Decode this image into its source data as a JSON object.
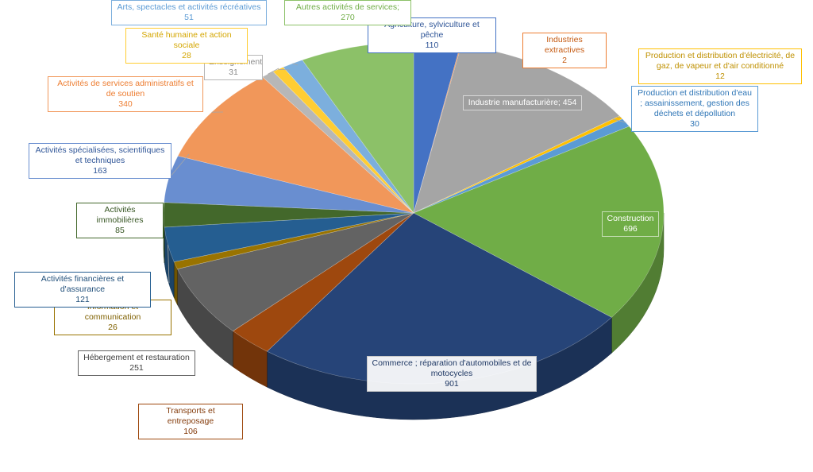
{
  "chart_data": {
    "type": "pie",
    "title": "",
    "slices": [
      {
        "name": "Agriculture, sylviculture et pêche",
        "value": "110",
        "color": "#4472C4",
        "textColor": "#2F5597"
      },
      {
        "name": "Industries extractives",
        "value": "2",
        "color": "#ED7D31",
        "textColor": "#C55A11"
      },
      {
        "name": "Industrie manufacturière; 454",
        "value": "",
        "color": "#A5A5A5",
        "textColor": "#ffffff"
      },
      {
        "name": "Production et distribution d'électricité, de gaz, de vapeur et d'air conditionné",
        "value": "12",
        "color": "#FFC000",
        "textColor": "#BF9000"
      },
      {
        "name": "Production et distribution d'eau ; assainissement, gestion des déchets et dépollution",
        "value": "30",
        "color": "#5B9BD5",
        "textColor": "#2E75B6"
      },
      {
        "name": "Construction",
        "value": "696",
        "color": "#70AD47",
        "textColor": "#ffffff"
      },
      {
        "name": "Commerce ; réparation d'automobiles et de motocycles",
        "value": "901",
        "color": "#264478",
        "textColor": "#1F3864"
      },
      {
        "name": "Transports et entreposage",
        "value": "106",
        "color": "#9E480E",
        "textColor": "#843C0C"
      },
      {
        "name": "Hébergement et restauration",
        "value": "251",
        "color": "#636363",
        "textColor": "#404040"
      },
      {
        "name": "Information et communication",
        "value": "26",
        "color": "#997300",
        "textColor": "#7F6000"
      },
      {
        "name": "Activités financières et d'assurance",
        "value": "121",
        "color": "#255E91",
        "textColor": "#1F4E79"
      },
      {
        "name": "Activités immobilières",
        "value": "85",
        "color": "#43682B",
        "textColor": "#375623"
      },
      {
        "name": "Activités spécialisées, scientifiques et techniques",
        "value": "163",
        "color": "#698ED0",
        "textColor": "#2F5597"
      },
      {
        "name": "Activités de services administratifs et de soutien",
        "value": "340",
        "color": "#F1975A",
        "textColor": "#ED7D31"
      },
      {
        "name": "Enseignement",
        "value": "31",
        "color": "#B7B7B7",
        "textColor": "#8C8C8C"
      },
      {
        "name": "Santé humaine et action sociale",
        "value": "28",
        "color": "#FFCD33",
        "textColor": "#D4A600"
      },
      {
        "name": "Arts, spectacles et activités récréatives",
        "value": "51",
        "color": "#7CAFDD",
        "textColor": "#5B9BD5"
      },
      {
        "name": "Autres activités de services; 270",
        "value": "",
        "color": "#8CC168",
        "textColor": "#70AD47"
      }
    ],
    "values": [
      110,
      2,
      454,
      12,
      30,
      696,
      901,
      106,
      251,
      26,
      121,
      85,
      163,
      340,
      31,
      28,
      51,
      270
    ]
  }
}
